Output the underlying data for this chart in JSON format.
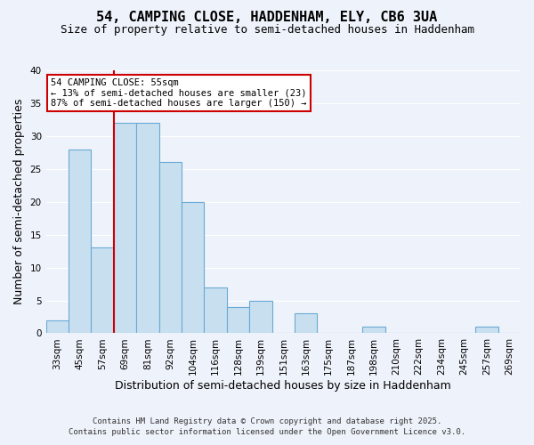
{
  "title": "54, CAMPING CLOSE, HADDENHAM, ELY, CB6 3UA",
  "subtitle": "Size of property relative to semi-detached houses in Haddenham",
  "xlabel": "Distribution of semi-detached houses by size in Haddenham",
  "ylabel": "Number of semi-detached properties",
  "bar_labels": [
    "33sqm",
    "45sqm",
    "57sqm",
    "69sqm",
    "81sqm",
    "92sqm",
    "104sqm",
    "116sqm",
    "128sqm",
    "139sqm",
    "151sqm",
    "163sqm",
    "175sqm",
    "187sqm",
    "198sqm",
    "210sqm",
    "222sqm",
    "234sqm",
    "245sqm",
    "257sqm",
    "269sqm"
  ],
  "bar_values": [
    2,
    28,
    13,
    32,
    32,
    26,
    20,
    7,
    4,
    5,
    0,
    3,
    0,
    0,
    1,
    0,
    0,
    0,
    0,
    1,
    0
  ],
  "bar_color": "#c8dff0",
  "bar_edge_color": "#6aaad4",
  "ylim": [
    0,
    40
  ],
  "yticks": [
    0,
    5,
    10,
    15,
    20,
    25,
    30,
    35,
    40
  ],
  "vline_index": 2,
  "vline_color": "#cc0000",
  "annotation_title": "54 CAMPING CLOSE: 55sqm",
  "annotation_line1": "← 13% of semi-detached houses are smaller (23)",
  "annotation_line2": "87% of semi-detached houses are larger (150) →",
  "annotation_box_color": "#ffffff",
  "annotation_box_edge": "#cc0000",
  "footer1": "Contains HM Land Registry data © Crown copyright and database right 2025.",
  "footer2": "Contains public sector information licensed under the Open Government Licence v3.0.",
  "background_color": "#eef2fa",
  "grid_color": "#ffffff",
  "title_fontsize": 11,
  "subtitle_fontsize": 9,
  "axis_label_fontsize": 9,
  "tick_fontsize": 7.5,
  "footer_fontsize": 6.5
}
